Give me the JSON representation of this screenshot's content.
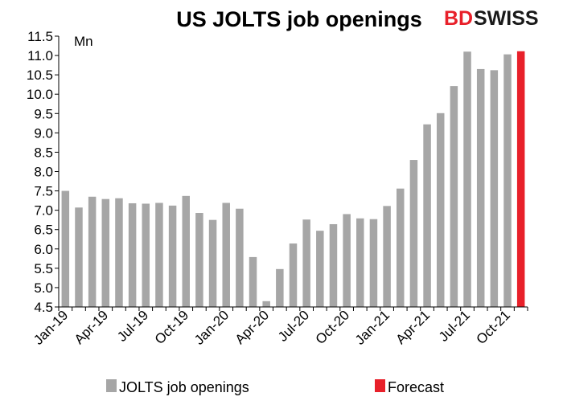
{
  "chart_data": {
    "type": "bar",
    "title": "US JOLTS job openings",
    "unit_label": "Mn",
    "ylim": [
      4.5,
      11.5
    ],
    "y_ticks": [
      "4.5",
      "5.0",
      "5.5",
      "6.0",
      "6.5",
      "7.0",
      "7.5",
      "8.0",
      "8.5",
      "9.0",
      "9.5",
      "10.0",
      "10.5",
      "11.0",
      "11.5"
    ],
    "x_tick_labels": [
      "Jan-19",
      "Apr-19",
      "Jul-19",
      "Oct-19",
      "Jan-20",
      "Apr-20",
      "Jul-20",
      "Oct-20",
      "Jan-21",
      "Apr-21",
      "Jul-21",
      "Oct-21"
    ],
    "categories": [
      "Jan-19",
      "Feb-19",
      "Mar-19",
      "Apr-19",
      "May-19",
      "Jun-19",
      "Jul-19",
      "Aug-19",
      "Sep-19",
      "Oct-19",
      "Nov-19",
      "Dec-19",
      "Jan-20",
      "Feb-20",
      "Mar-20",
      "Apr-20",
      "May-20",
      "Jun-20",
      "Jul-20",
      "Aug-20",
      "Sep-20",
      "Oct-20",
      "Nov-20",
      "Dec-20",
      "Jan-21",
      "Feb-21",
      "Mar-21",
      "Apr-21",
      "May-21",
      "Jun-21",
      "Jul-21",
      "Aug-21",
      "Sep-21",
      "Oct-21",
      "Nov-21"
    ],
    "series": [
      {
        "name": "JOLTS job openings",
        "color": "#a6a6a6",
        "values": [
          7.5,
          7.07,
          7.35,
          7.29,
          7.31,
          7.18,
          7.17,
          7.19,
          7.12,
          7.37,
          6.93,
          6.75,
          7.19,
          7.04,
          5.79,
          4.65,
          5.48,
          6.14,
          6.76,
          6.47,
          6.64,
          6.9,
          6.79,
          6.77,
          7.11,
          7.56,
          8.3,
          9.22,
          9.51,
          10.21,
          11.1,
          10.65,
          10.62,
          11.03,
          null
        ]
      },
      {
        "name": "Forecast",
        "color": "#e8202a",
        "values": [
          null,
          null,
          null,
          null,
          null,
          null,
          null,
          null,
          null,
          null,
          null,
          null,
          null,
          null,
          null,
          null,
          null,
          null,
          null,
          null,
          null,
          null,
          null,
          null,
          null,
          null,
          null,
          null,
          null,
          null,
          null,
          null,
          null,
          null,
          11.11
        ]
      }
    ],
    "legend": [
      {
        "label": "JOLTS job openings",
        "color": "#a6a6a6"
      },
      {
        "label": "Forecast",
        "color": "#e8202a"
      }
    ],
    "legend_position": "bottom"
  },
  "logo": {
    "part1": "BD",
    "part2": "SWISS",
    "color_bd": "#e8202a",
    "color_swiss": "#1a1a1a"
  }
}
